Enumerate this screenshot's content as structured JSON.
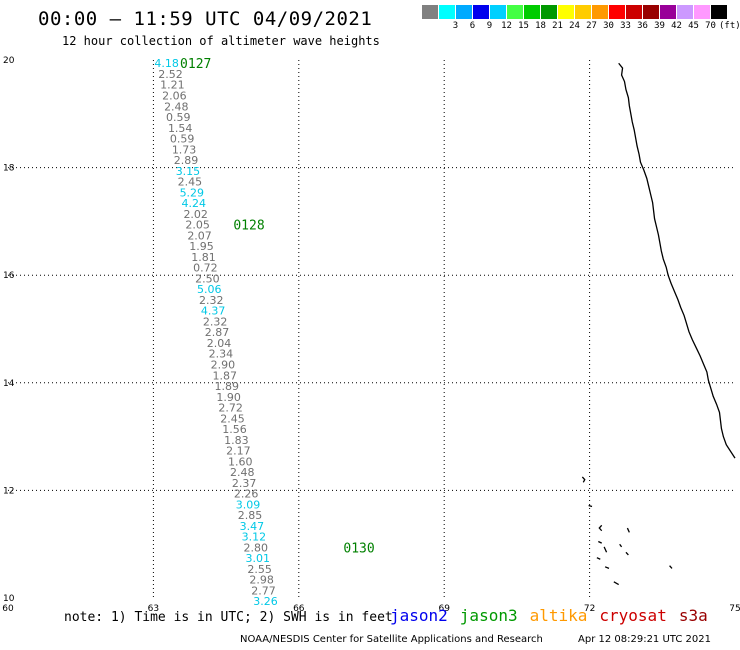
{
  "header": {
    "title": "00:00 – 11:59 UTC 04/09/2021",
    "subtitle": "12 hour collection of altimeter wave heights"
  },
  "legend": {
    "swatches": [
      {
        "color": "#808080",
        "label": ""
      },
      {
        "color": "#00ffff",
        "label": "3"
      },
      {
        "color": "#00aaff",
        "label": "6"
      },
      {
        "color": "#0000ee",
        "label": "9"
      },
      {
        "color": "#00d0ff",
        "label": "12"
      },
      {
        "color": "#44ff44",
        "label": "15"
      },
      {
        "color": "#00cc00",
        "label": "18"
      },
      {
        "color": "#009900",
        "label": "21"
      },
      {
        "color": "#ffff00",
        "label": "24"
      },
      {
        "color": "#ffcc00",
        "label": "27"
      },
      {
        "color": "#ff9900",
        "label": "30"
      },
      {
        "color": "#ff0000",
        "label": "33"
      },
      {
        "color": "#cc0000",
        "label": "36"
      },
      {
        "color": "#990000",
        "label": "39"
      },
      {
        "color": "#990099",
        "label": "42"
      },
      {
        "color": "#cc99ff",
        "label": "45"
      },
      {
        "color": "#ff99ff",
        "label": "70"
      },
      {
        "color": "#000000",
        "label": "(ft)"
      }
    ]
  },
  "map": {
    "lon_range": [
      60,
      75
    ],
    "lat_range": [
      10,
      20
    ],
    "lon_ticks": [
      "60",
      "63",
      "66",
      "69",
      "72",
      "75"
    ],
    "lat_ticks": [
      "20",
      "18",
      "16",
      "14",
      "12",
      "10"
    ],
    "track_color_normal": "#707070",
    "track_color_high": "#00c8e6",
    "time_label_color": "#008000",
    "observations": [
      {
        "lon": 63.02,
        "lat": 19.94,
        "swh": "4.18",
        "high": true
      },
      {
        "lon": 63.1,
        "lat": 19.74,
        "swh": "2.52",
        "high": false
      },
      {
        "lon": 63.14,
        "lat": 19.54,
        "swh": "1.21",
        "high": false
      },
      {
        "lon": 63.18,
        "lat": 19.34,
        "swh": "2.06",
        "high": false
      },
      {
        "lon": 63.22,
        "lat": 19.14,
        "swh": "2.48",
        "high": false
      },
      {
        "lon": 63.26,
        "lat": 18.94,
        "swh": "0.59",
        "high": false
      },
      {
        "lon": 63.3,
        "lat": 18.74,
        "swh": "1.54",
        "high": false
      },
      {
        "lon": 63.34,
        "lat": 18.54,
        "swh": "0.59",
        "high": false
      },
      {
        "lon": 63.38,
        "lat": 18.34,
        "swh": "1.73",
        "high": false
      },
      {
        "lon": 63.42,
        "lat": 18.14,
        "swh": "2.89",
        "high": false
      },
      {
        "lon": 63.46,
        "lat": 17.94,
        "swh": "3.15",
        "high": true
      },
      {
        "lon": 63.5,
        "lat": 17.74,
        "swh": "2.45",
        "high": false
      },
      {
        "lon": 63.54,
        "lat": 17.54,
        "swh": "5.29",
        "high": true
      },
      {
        "lon": 63.58,
        "lat": 17.34,
        "swh": "4.24",
        "high": true
      },
      {
        "lon": 63.62,
        "lat": 17.14,
        "swh": "2.02",
        "high": false
      },
      {
        "lon": 63.66,
        "lat": 16.94,
        "swh": "2.05",
        "high": false
      },
      {
        "lon": 63.7,
        "lat": 16.74,
        "swh": "2.07",
        "high": false
      },
      {
        "lon": 63.74,
        "lat": 16.54,
        "swh": "1.95",
        "high": false
      },
      {
        "lon": 63.78,
        "lat": 16.34,
        "swh": "1.81",
        "high": false
      },
      {
        "lon": 63.82,
        "lat": 16.14,
        "swh": "0.72",
        "high": false
      },
      {
        "lon": 63.86,
        "lat": 15.94,
        "swh": "2.50",
        "high": false
      },
      {
        "lon": 63.9,
        "lat": 15.74,
        "swh": "5.06",
        "high": true
      },
      {
        "lon": 63.94,
        "lat": 15.54,
        "swh": "2.32",
        "high": false
      },
      {
        "lon": 63.98,
        "lat": 15.34,
        "swh": "4.37",
        "high": true
      },
      {
        "lon": 64.02,
        "lat": 15.14,
        "swh": "2.32",
        "high": false
      },
      {
        "lon": 64.06,
        "lat": 14.94,
        "swh": "2.87",
        "high": false
      },
      {
        "lon": 64.1,
        "lat": 14.74,
        "swh": "2.04",
        "high": false
      },
      {
        "lon": 64.14,
        "lat": 14.54,
        "swh": "2.34",
        "high": false
      },
      {
        "lon": 64.18,
        "lat": 14.34,
        "swh": "2.90",
        "high": false
      },
      {
        "lon": 64.22,
        "lat": 14.14,
        "swh": "1.87",
        "high": false
      },
      {
        "lon": 64.26,
        "lat": 13.94,
        "swh": "1.89",
        "high": false
      },
      {
        "lon": 64.3,
        "lat": 13.74,
        "swh": "1.90",
        "high": false
      },
      {
        "lon": 64.34,
        "lat": 13.54,
        "swh": "2.72",
        "high": false
      },
      {
        "lon": 64.38,
        "lat": 13.34,
        "swh": "2.45",
        "high": false
      },
      {
        "lon": 64.42,
        "lat": 13.14,
        "swh": "1.56",
        "high": false
      },
      {
        "lon": 64.46,
        "lat": 12.94,
        "swh": "1.83",
        "high": false
      },
      {
        "lon": 64.5,
        "lat": 12.74,
        "swh": "2.17",
        "high": false
      },
      {
        "lon": 64.54,
        "lat": 12.54,
        "swh": "1.60",
        "high": false
      },
      {
        "lon": 64.58,
        "lat": 12.34,
        "swh": "2.48",
        "high": false
      },
      {
        "lon": 64.62,
        "lat": 12.14,
        "swh": "2.37",
        "high": false
      },
      {
        "lon": 64.66,
        "lat": 11.94,
        "swh": "2.26",
        "high": false
      },
      {
        "lon": 64.7,
        "lat": 11.74,
        "swh": "3.09",
        "high": true
      },
      {
        "lon": 64.74,
        "lat": 11.54,
        "swh": "2.85",
        "high": false
      },
      {
        "lon": 64.78,
        "lat": 11.34,
        "swh": "3.47",
        "high": true
      },
      {
        "lon": 64.82,
        "lat": 11.14,
        "swh": "3.12",
        "high": true
      },
      {
        "lon": 64.86,
        "lat": 10.94,
        "swh": "2.80",
        "high": false
      },
      {
        "lon": 64.9,
        "lat": 10.74,
        "swh": "3.01",
        "high": true
      },
      {
        "lon": 64.94,
        "lat": 10.54,
        "swh": "2.55",
        "high": false
      },
      {
        "lon": 64.98,
        "lat": 10.34,
        "swh": "2.98",
        "high": false
      },
      {
        "lon": 65.02,
        "lat": 10.14,
        "swh": "2.77",
        "high": false
      },
      {
        "lon": 65.06,
        "lat": 9.94,
        "swh": "3.26",
        "high": true
      }
    ],
    "time_labels": [
      {
        "text": "0127",
        "lon": 63.55,
        "lat": 19.94
      },
      {
        "text": "0128",
        "lon": 64.65,
        "lat": 16.94
      },
      {
        "text": "0130",
        "lon": 66.92,
        "lat": 10.94
      }
    ],
    "coastline": [
      [
        72.6,
        19.94
      ],
      [
        72.68,
        19.85
      ],
      [
        72.66,
        19.72
      ],
      [
        72.72,
        19.6
      ],
      [
        72.75,
        19.45
      ],
      [
        72.8,
        19.3
      ],
      [
        72.82,
        19.15
      ],
      [
        72.85,
        19.0
      ],
      [
        72.88,
        18.85
      ],
      [
        72.92,
        18.7
      ],
      [
        72.95,
        18.55
      ],
      [
        72.98,
        18.4
      ],
      [
        73.02,
        18.25
      ],
      [
        73.05,
        18.1
      ],
      [
        73.12,
        17.95
      ],
      [
        73.18,
        17.8
      ],
      [
        73.22,
        17.65
      ],
      [
        73.26,
        17.5
      ],
      [
        73.3,
        17.35
      ],
      [
        73.32,
        17.2
      ],
      [
        73.34,
        17.05
      ],
      [
        73.38,
        16.9
      ],
      [
        73.42,
        16.75
      ],
      [
        73.45,
        16.6
      ],
      [
        73.48,
        16.45
      ],
      [
        73.52,
        16.3
      ],
      [
        73.58,
        16.15
      ],
      [
        73.62,
        16.0
      ],
      [
        73.68,
        15.85
      ],
      [
        73.75,
        15.7
      ],
      [
        73.82,
        15.55
      ],
      [
        73.88,
        15.4
      ],
      [
        73.95,
        15.25
      ],
      [
        74.0,
        15.1
      ],
      [
        74.05,
        14.95
      ],
      [
        74.12,
        14.8
      ],
      [
        74.2,
        14.65
      ],
      [
        74.28,
        14.5
      ],
      [
        74.35,
        14.35
      ],
      [
        74.42,
        14.2
      ],
      [
        74.45,
        14.05
      ],
      [
        74.5,
        13.9
      ],
      [
        74.55,
        13.75
      ],
      [
        74.62,
        13.6
      ],
      [
        74.68,
        13.45
      ],
      [
        74.7,
        13.3
      ],
      [
        74.72,
        13.15
      ],
      [
        74.76,
        13.0
      ],
      [
        74.82,
        12.85
      ],
      [
        75.0,
        12.6
      ]
    ],
    "islands": [
      [
        [
          71.85,
          12.25
        ],
        [
          71.9,
          12.2
        ],
        [
          71.87,
          12.15
        ]
      ],
      [
        [
          71.98,
          11.72
        ],
        [
          72.05,
          11.7
        ]
      ],
      [
        [
          72.25,
          11.35
        ],
        [
          72.2,
          11.3
        ],
        [
          72.25,
          11.25
        ]
      ],
      [
        [
          72.78,
          11.3
        ],
        [
          72.82,
          11.22
        ]
      ],
      [
        [
          72.18,
          11.05
        ],
        [
          72.25,
          11.02
        ]
      ],
      [
        [
          72.62,
          11.0
        ],
        [
          72.66,
          10.95
        ]
      ],
      [
        [
          72.3,
          10.95
        ],
        [
          72.35,
          10.85
        ]
      ],
      [
        [
          72.75,
          10.85
        ],
        [
          72.8,
          10.8
        ]
      ],
      [
        [
          72.15,
          10.75
        ],
        [
          72.22,
          10.72
        ]
      ],
      [
        [
          72.32,
          10.58
        ],
        [
          72.4,
          10.55
        ]
      ],
      [
        [
          73.65,
          10.6
        ],
        [
          73.7,
          10.55
        ]
      ],
      [
        [
          72.5,
          10.3
        ],
        [
          72.6,
          10.25
        ]
      ]
    ]
  },
  "footer": {
    "note": "note: 1) Time is in UTC; 2) SWH is in feet",
    "satellites": [
      {
        "name": "jason2",
        "color": "#0000ee"
      },
      {
        "name": "jason3",
        "color": "#009900"
      },
      {
        "name": "altika",
        "color": "#ff9900"
      },
      {
        "name": "cryosat",
        "color": "#cc0000"
      },
      {
        "name": "s3a",
        "color": "#990000"
      }
    ],
    "credit": "NOAA/NESDIS Center for Satellite Applications and Research",
    "timestamp": "Apr 12 08:29:21 UTC 2021"
  }
}
